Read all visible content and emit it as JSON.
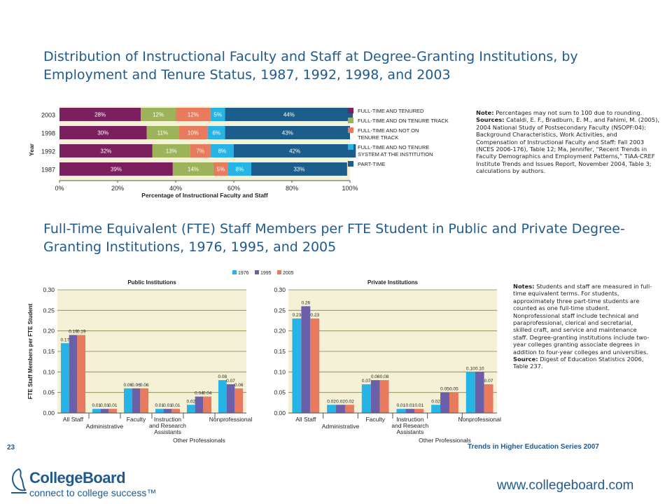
{
  "page_number": "23",
  "series_label": "Trends in Higher Education Series 2007",
  "website": "www.collegeboard.com",
  "logo": {
    "brand": "CollegeBoard",
    "tagline": "connect to college success™"
  },
  "chart1": {
    "title": "Distribution of Instructional Faculty and Staff at Degree-Granting Institutions, by Employment and Tenure Status, 1987, 1992, 1998, and 2003",
    "note_label": "Note:",
    "note_text": "Percentages may not sum to 100 due to rounding.",
    "sources_label": "Sources:",
    "sources_text": "Cataldi, E. F., Bradburn, E. M., and Fahimi, M. (2005), 2004 National Study of Postsecondary Faculty (NSOPF:04): Background Characteristics, Work Activities, and Compensation of Instructional Faculty and Staff: Fall 2003 (NCES 2006-176), Table 12; Ma, Jennifer, “Recent Trends in Faculty Demographics and Employment Patterns,” TIAA-CREF Institute Trends and Issues Report, November 2004, Table 3; calculations by authors."
  },
  "chart2": {
    "title": "Full-Time Equivalent (FTE) Staff Members per FTE Student in Public and Private Degree-Granting Institutions, 1976, 1995, and 2005",
    "notes_label": "Notes:",
    "notes_text": "Students and staff are measured in full-time equivalent terms. For students, approximately three part-time students are counted as one full-time student. Nonprofessional staff include technical and paraprofessional, clerical and secretarial, skilled craft, and service and maintenance staff. Degree-granting institutions include two-year colleges granting associate degrees in addition to four-year colleges and universities.",
    "source_label": "Source:",
    "source_text": "Digest of Education Statistics 2006, Table 237."
  },
  "chart_data": [
    {
      "type": "bar",
      "orientation": "horizontal-stacked",
      "categories": [
        "2003",
        "1998",
        "1992",
        "1987"
      ],
      "series": [
        {
          "name": "FULL-TIME AND TENURED",
          "values": [
            28,
            30,
            32,
            39
          ],
          "color": "#7b1f5e"
        },
        {
          "name": "FULL-TIME AND ON TENURE TRACK",
          "values": [
            12,
            11,
            13,
            14
          ],
          "color": "#9db35a"
        },
        {
          "name": "FULL-TIME AND NOT ON TENURE TRACK",
          "values": [
            12,
            10,
            7,
            5
          ],
          "color": "#e87a5d"
        },
        {
          "name": "FULL-TIME AND NO TENURE SYSTEM AT THE INSTITUTION",
          "values": [
            5,
            6,
            8,
            8
          ],
          "color": "#26b3e6"
        },
        {
          "name": "PART-TIME",
          "values": [
            44,
            43,
            42,
            33
          ],
          "color": "#1b5e8c"
        }
      ],
      "data_labels": [
        [
          "28%",
          "12%",
          "12%",
          "5%",
          "44%"
        ],
        [
          "30%",
          "11%",
          "10%",
          "6%",
          "43%"
        ],
        [
          "32%",
          "13%",
          "7%",
          "8%",
          "42%"
        ],
        [
          "39%",
          "14%",
          "5%",
          "8%",
          "33%"
        ]
      ],
      "xlabel": "Percentage of Instructional Faculty and Staff",
      "ylabel": "Year",
      "xticks": [
        "0%",
        "20%",
        "40%",
        "60%",
        "80%",
        "100%"
      ],
      "xlim": [
        0,
        100
      ],
      "legend": "right"
    },
    {
      "type": "bar",
      "subtitle": "Public Institutions",
      "categories": [
        "All Staff",
        "Administrative",
        "Faculty",
        "Instruction and Research Assistants",
        "Other Professionals",
        "Nonprofessional"
      ],
      "legend_entries": [
        "1976",
        "1995",
        "2005"
      ],
      "series": [
        {
          "name": "1976",
          "values": [
            0.17,
            0.01,
            0.06,
            0.01,
            0.02,
            0.08
          ],
          "color": "#26b3e6"
        },
        {
          "name": "1995",
          "values": [
            0.19,
            0.01,
            0.06,
            0.01,
            0.04,
            0.07
          ],
          "color": "#6a5fa8"
        },
        {
          "name": "2005",
          "values": [
            0.19,
            0.01,
            0.06,
            0.01,
            0.04,
            0.06
          ],
          "color": "#e87a5d"
        }
      ],
      "ylabel": "FTE Staff Members per FTE Student",
      "yticks": [
        "0.00",
        "0.05",
        "0.10",
        "0.15",
        "0.20",
        "0.25",
        "0.30"
      ],
      "ylim": [
        0,
        0.3
      ],
      "legend": "top"
    },
    {
      "type": "bar",
      "subtitle": "Private Institutions",
      "categories": [
        "All Staff",
        "Administrative",
        "Faculty",
        "Instruction and Research Assistants",
        "Other Professionals",
        "Nonprofessional"
      ],
      "series": [
        {
          "name": "1976",
          "values": [
            0.23,
            0.02,
            0.07,
            0.01,
            0.02,
            0.1
          ],
          "color": "#26b3e6"
        },
        {
          "name": "1995",
          "values": [
            0.26,
            0.02,
            0.08,
            0.01,
            0.05,
            0.1
          ],
          "color": "#6a5fa8"
        },
        {
          "name": "2005",
          "values": [
            0.23,
            0.02,
            0.08,
            0.01,
            0.05,
            0.07
          ],
          "color": "#e87a5d"
        }
      ],
      "yticks": [
        "0.00",
        "0.05",
        "0.10",
        "0.15",
        "0.20",
        "0.25",
        "0.30"
      ],
      "ylim": [
        0,
        0.3
      ]
    }
  ]
}
